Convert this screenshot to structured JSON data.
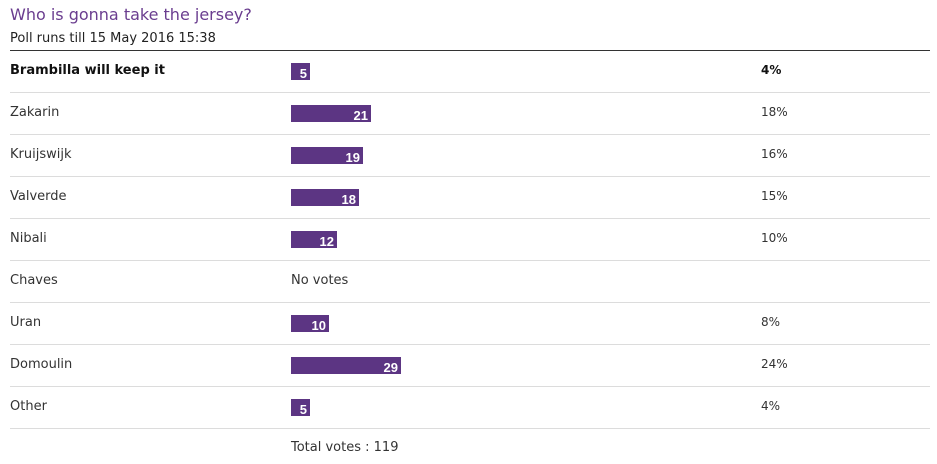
{
  "poll": {
    "title": "Who is gonna take the jersey?",
    "runs_till": "Poll runs till 15 May 2016 15:38",
    "total_votes": "Total votes : 119",
    "no_votes_label": "No votes",
    "bar_color": "#5c3583",
    "title_color": "#6a3d8f",
    "options": [
      {
        "label": "Brambilla will keep it",
        "votes": 5,
        "percent": "4%",
        "leading": true
      },
      {
        "label": "Zakarin",
        "votes": 21,
        "percent": "18%"
      },
      {
        "label": "Kruijswijk",
        "votes": 19,
        "percent": "16%"
      },
      {
        "label": "Valverde",
        "votes": 18,
        "percent": "15%"
      },
      {
        "label": "Nibali",
        "votes": 12,
        "percent": "10%"
      },
      {
        "label": "Chaves",
        "votes": 0,
        "percent": ""
      },
      {
        "label": "Uran",
        "votes": 10,
        "percent": "8%"
      },
      {
        "label": "Domoulin",
        "votes": 29,
        "percent": "24%"
      },
      {
        "label": "Other",
        "votes": 5,
        "percent": "4%"
      }
    ]
  },
  "chart_data": {
    "type": "bar",
    "orientation": "horizontal",
    "title": "Who is gonna take the jersey?",
    "categories": [
      "Brambilla will keep it",
      "Zakarin",
      "Kruijswijk",
      "Valverde",
      "Nibali",
      "Chaves",
      "Uran",
      "Domoulin",
      "Other"
    ],
    "values": [
      5,
      21,
      19,
      18,
      12,
      0,
      10,
      29,
      5
    ],
    "percent_labels": [
      "4%",
      "18%",
      "16%",
      "15%",
      "10%",
      "",
      "8%",
      "24%",
      "4%"
    ]
  }
}
